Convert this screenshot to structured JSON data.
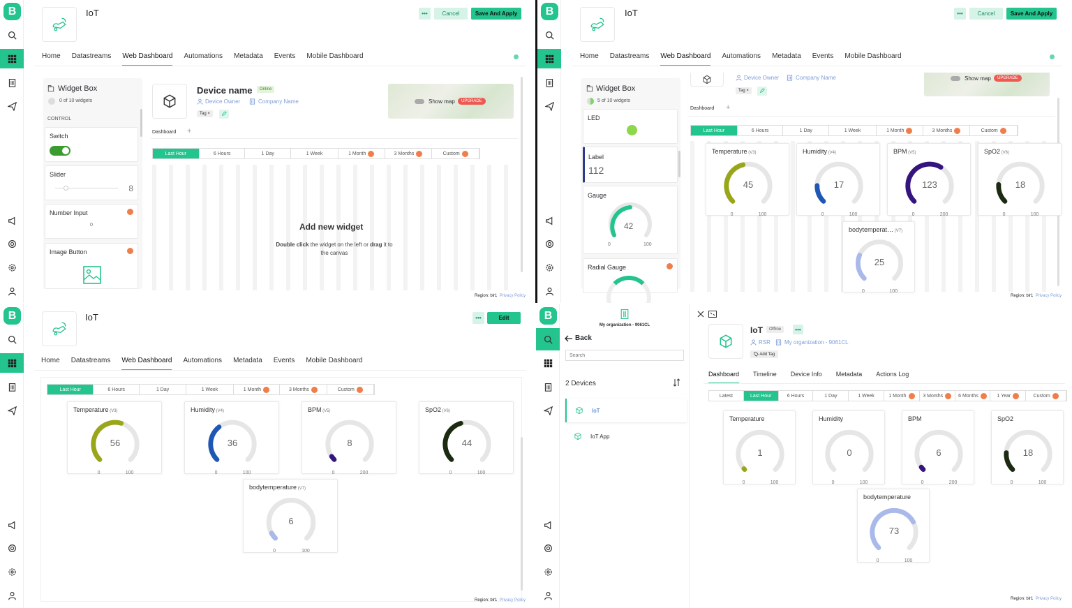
{
  "app": {
    "logo_letter": "B",
    "title": "IoT"
  },
  "colors": {
    "accent": "#23c48e",
    "olive": "#9aa61a",
    "blue": "#1f58b4",
    "purple": "#35147e",
    "darkgreen": "#1b2a10",
    "lavender": "#a8b9ea",
    "green": "#23c48e"
  },
  "tabs": [
    "Home",
    "Datastreams",
    "Web Dashboard",
    "Automations",
    "Metadata",
    "Events",
    "Mobile Dashboard"
  ],
  "actions": {
    "dots": "•••",
    "cancel": "Cancel",
    "save": "Save And Apply",
    "edit": "Edit"
  },
  "timeranges": [
    "Last Hour",
    "6 Hours",
    "1 Day",
    "1 Week",
    "1 Month",
    "3 Months",
    "Custom"
  ],
  "footer": {
    "region": "Region: blr1",
    "privacy": "Privacy Policy"
  },
  "q1": {
    "widgetbox": {
      "title": "Widget Box",
      "count": "0 of 10 widgets",
      "section": "CONTROL"
    },
    "widgets": [
      "Switch",
      "Slider",
      "Number Input",
      "Image Button"
    ],
    "slider_value": "8",
    "number_value": "0",
    "device": {
      "name": "Device name",
      "status": "Online",
      "owner": "Device Owner",
      "company": "Company Name",
      "tag": "Tag"
    },
    "showmap": "Show map",
    "upgrade": "UPGRADE",
    "dashboard_tab": "Dashboard",
    "empty": {
      "title": "Add new widget",
      "line1_a": "Double click",
      "line1_b": " the widget on the left or ",
      "line1_c": "drag",
      "line1_d": " it to",
      "line2": "the canvas"
    }
  },
  "q2": {
    "widgetbox": {
      "title": "Widget Box",
      "count": "5 of 10 widgets"
    },
    "widgets": {
      "led": "LED",
      "label": "Label",
      "label_value": "112",
      "gauge": "Gauge",
      "gauge_value": "42",
      "gauge_min": "0",
      "gauge_max": "100",
      "radial": "Radial Gauge"
    },
    "device_owner": "Device Owner",
    "company": "Company Name",
    "tag": "Tag",
    "showmap": "Show map",
    "upgrade": "UPGRADE",
    "dashboard_tab": "Dashboard",
    "gauges": [
      {
        "name": "Temperature",
        "pin": "(V3)",
        "value": 45,
        "min": "0",
        "max": "100",
        "frac": 0.45,
        "color": "#9aa61a"
      },
      {
        "name": "Humidity",
        "pin": "(V4)",
        "value": 17,
        "min": "0",
        "max": "100",
        "frac": 0.17,
        "color": "#1f58b4"
      },
      {
        "name": "BPM",
        "pin": "(V5)",
        "value": 123,
        "min": "0",
        "max": "200",
        "frac": 0.615,
        "color": "#35147e"
      },
      {
        "name": "SpO2",
        "pin": "(V6)",
        "value": 18,
        "min": "0",
        "max": "100",
        "frac": 0.18,
        "color": "#1b2a10"
      },
      {
        "name": "bodytemperat…",
        "pin": "(V7)",
        "value": 25,
        "min": "0",
        "max": "100",
        "frac": 0.25,
        "color": "#a8b9ea"
      }
    ]
  },
  "q3": {
    "gauges": [
      {
        "name": "Temperature",
        "pin": "(V3)",
        "value": 56,
        "min": "0",
        "max": "100",
        "frac": 0.56,
        "color": "#9aa61a"
      },
      {
        "name": "Humidity",
        "pin": "(V4)",
        "value": 36,
        "min": "0",
        "max": "100",
        "frac": 0.36,
        "color": "#1f58b4"
      },
      {
        "name": "BPM",
        "pin": "(V5)",
        "value": 8,
        "min": "0",
        "max": "200",
        "frac": 0.04,
        "color": "#35147e"
      },
      {
        "name": "SpO2",
        "pin": "(V6)",
        "value": 44,
        "min": "0",
        "max": "100",
        "frac": 0.44,
        "color": "#1b2a10"
      },
      {
        "name": "bodytemperature",
        "pin": "(V7)",
        "value": 6,
        "min": "0",
        "max": "100",
        "frac": 0.06,
        "color": "#a8b9ea"
      }
    ]
  },
  "q4": {
    "org": "My organization - 9061CL",
    "back": "Back",
    "search_placeholder": "Search",
    "devices_count": "2 Devices",
    "devices": [
      "IoT",
      "IoT App"
    ],
    "device": {
      "name": "IoT",
      "status": "Offline",
      "owner": "RSR",
      "org": "My organization - 9061CL",
      "addtag": "Add Tag"
    },
    "tabs": [
      "Dashboard",
      "Timeline",
      "Device Info",
      "Metadata",
      "Actions Log"
    ],
    "timeranges": [
      "Latest",
      "Last Hour",
      "6 Hours",
      "1 Day",
      "1 Week",
      "1 Month",
      "3 Months",
      "6 Months",
      "1 Year",
      "Custom"
    ],
    "gauges": [
      {
        "name": "Temperature",
        "pin": "",
        "value": 1,
        "min": "0",
        "max": "100",
        "frac": 0.01,
        "color": "#9aa61a"
      },
      {
        "name": "Humidity",
        "pin": "",
        "value": 0,
        "min": "0",
        "max": "100",
        "frac": 0.0,
        "color": "#1f58b4"
      },
      {
        "name": "BPM",
        "pin": "",
        "value": 6,
        "min": "0",
        "max": "200",
        "frac": 0.03,
        "color": "#35147e"
      },
      {
        "name": "SpO2",
        "pin": "",
        "value": 18,
        "min": "0",
        "max": "100",
        "frac": 0.18,
        "color": "#1b2a10"
      },
      {
        "name": "bodytemperature",
        "pin": "",
        "value": 73,
        "min": "0",
        "max": "100",
        "frac": 0.73,
        "color": "#a8b9ea"
      }
    ]
  }
}
